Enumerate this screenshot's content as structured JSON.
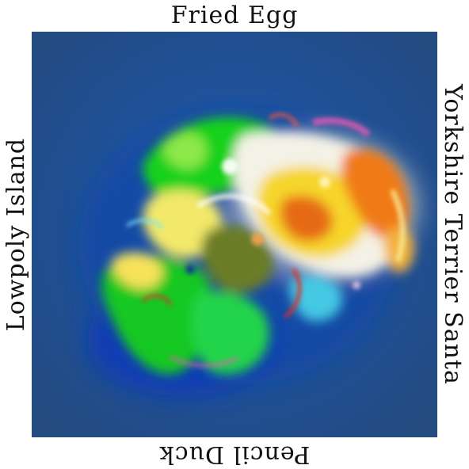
{
  "labels": {
    "top": "Fried Egg",
    "bottom": "Pencil Duck",
    "left": "Lowpoly Island",
    "right": "Yorkshire Terrier Santa"
  },
  "image": {
    "description_icon": "abstract-generated-art",
    "palette": {
      "background": "#1e4d8f",
      "deep_blue": "#0b3a8c",
      "green": "#19d21b",
      "yellow": "#f5dc1a",
      "orange": "#f07a17",
      "white": "#f4f6f0",
      "pink": "#e45ab4",
      "red": "#d8322a",
      "cyan": "#4fd6e8"
    }
  }
}
